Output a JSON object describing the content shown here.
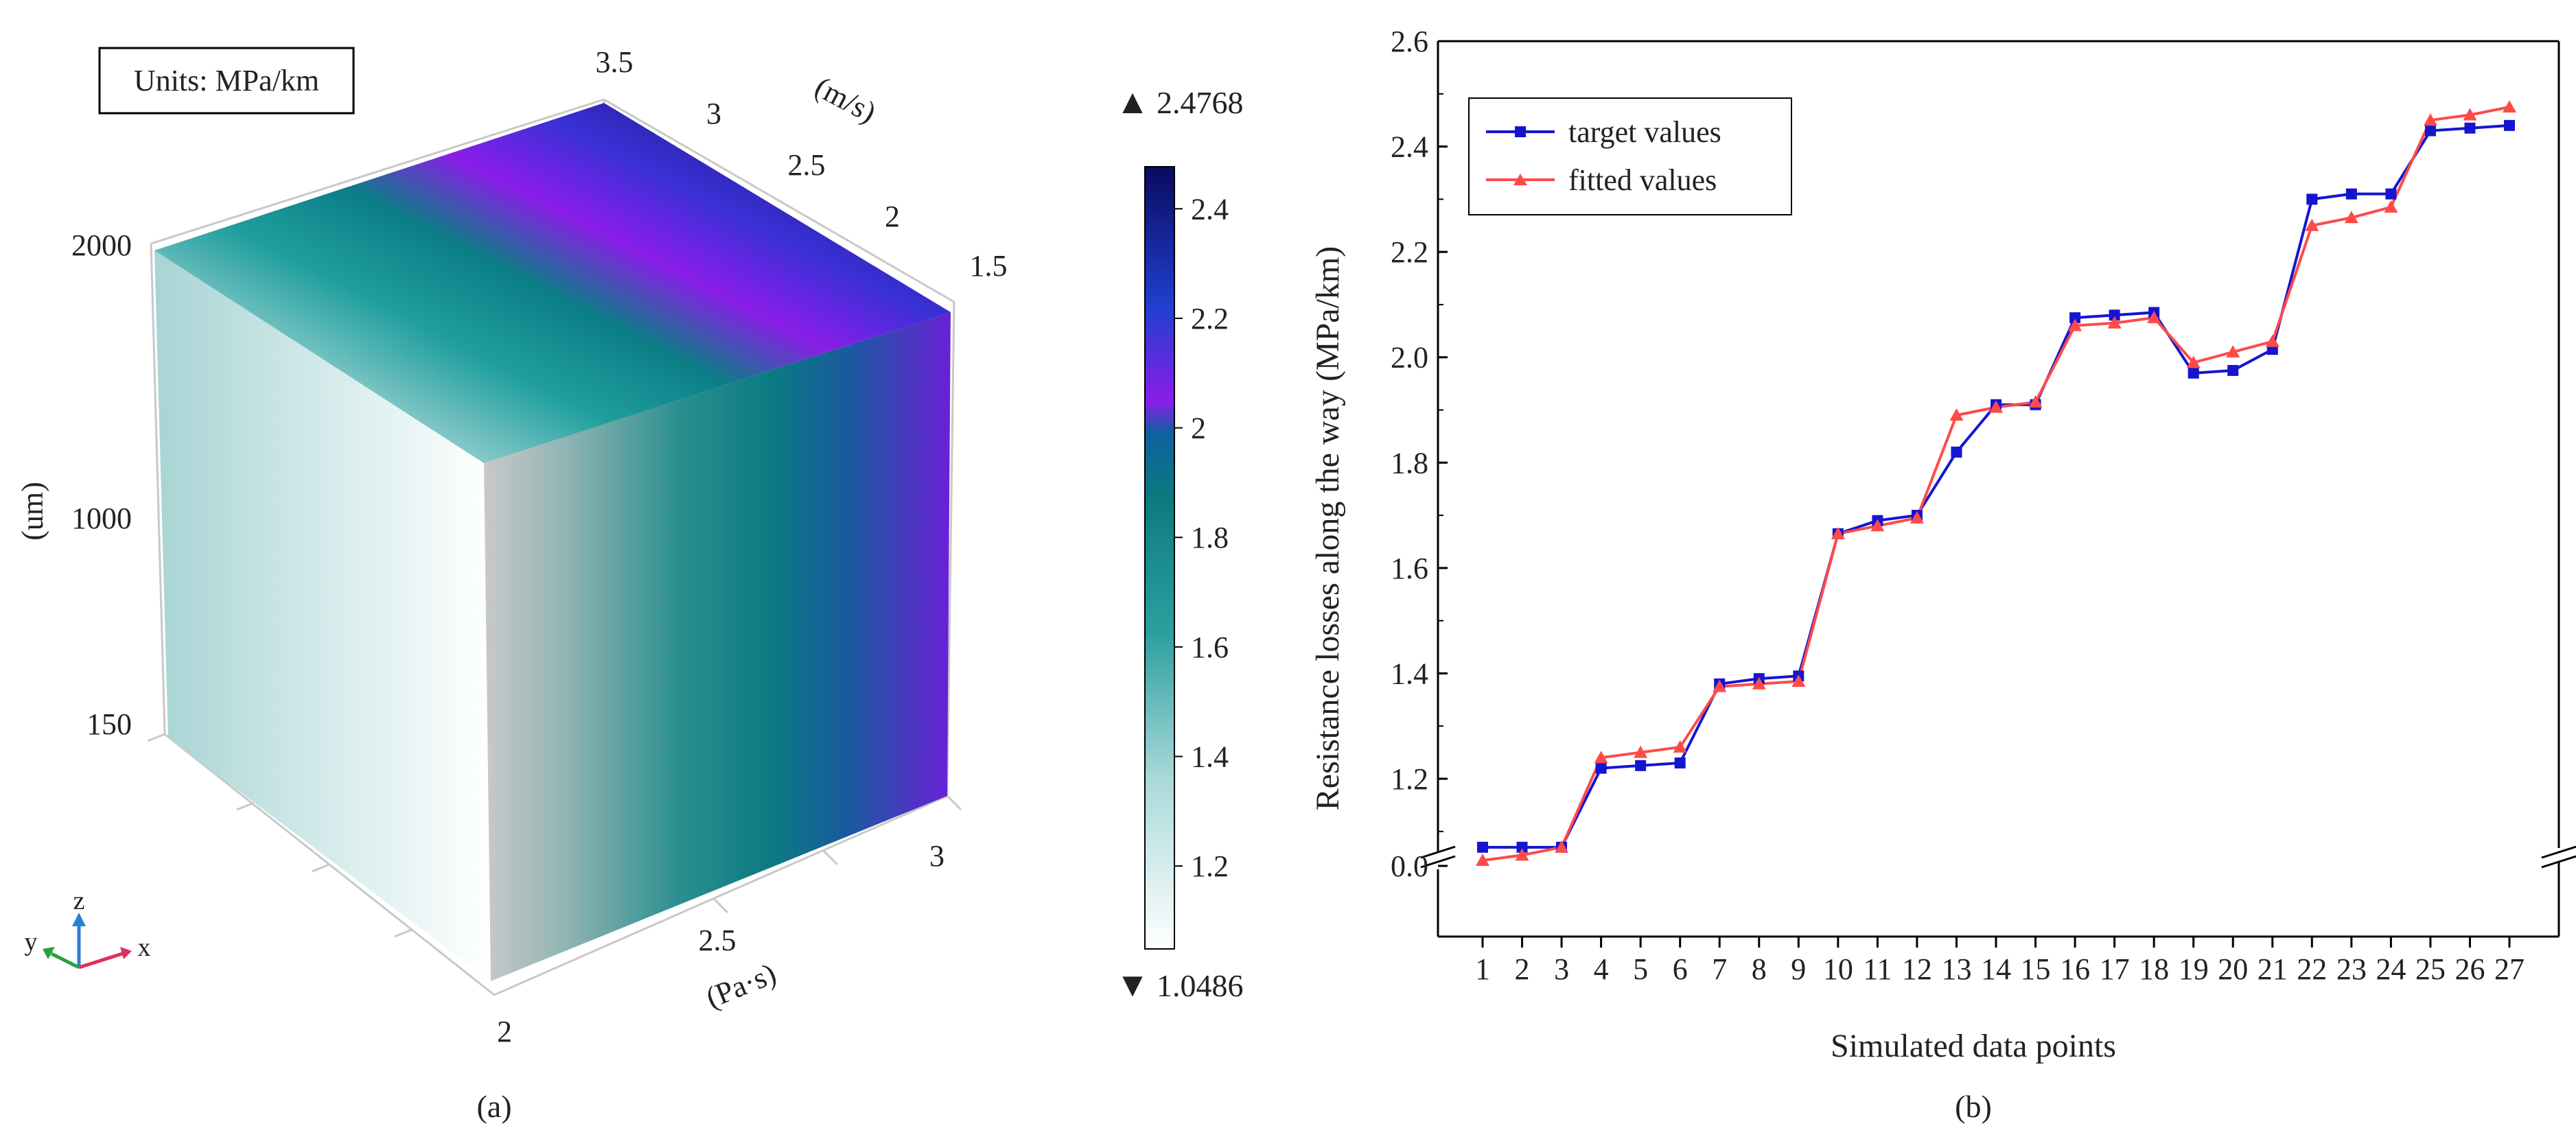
{
  "panel_a": {
    "units_label": "Units: MPa/km",
    "caption": "(a)",
    "z_axis": {
      "label": "(um)",
      "ticks": [
        "2000",
        "1000",
        "150"
      ]
    },
    "y_axis": {
      "label": "(m/s)",
      "ticks": [
        "3.5",
        "3",
        "2.5",
        "2",
        "1.5"
      ]
    },
    "x_axis": {
      "label": "(Pa·s)",
      "ticks": [
        "3",
        "2.5",
        "2"
      ]
    },
    "triad": {
      "z": "z",
      "y": "y",
      "x": "x"
    },
    "colorbar": {
      "max_label": "2.4768",
      "min_label": "1.0486",
      "max_marker": "▲",
      "min_marker": "▼",
      "ticks": [
        "2.4",
        "2.2",
        "2",
        "1.8",
        "1.6",
        "1.4",
        "1.2"
      ],
      "colors": [
        "#ffffff",
        "#a8d8d8",
        "#2fa0a0",
        "#0a7a80",
        "#1060a0",
        "#8a1de8",
        "#2040d0",
        "#0a0a60"
      ]
    }
  },
  "chart_data": {
    "type": "line",
    "title": "",
    "caption": "(b)",
    "xlabel": "Simulated data points",
    "ylabel": "Resistance losses along the way (MPa/km)",
    "x": [
      1,
      2,
      3,
      4,
      5,
      6,
      7,
      8,
      9,
      10,
      11,
      12,
      13,
      14,
      15,
      16,
      17,
      18,
      19,
      20,
      21,
      22,
      23,
      24,
      25,
      26,
      27
    ],
    "x_tick_labels": [
      "1",
      "2",
      "3",
      "4",
      "5",
      "6",
      "7",
      "8",
      "9",
      "10",
      "11",
      "12",
      "13",
      "14",
      "15",
      "16",
      "17",
      "18",
      "19",
      "20",
      "21",
      "22",
      "23",
      "24",
      "25",
      "26",
      "27"
    ],
    "y_tick_labels": [
      "2.6",
      "2.4",
      "2.2",
      "2.0",
      "1.8",
      "1.6",
      "1.4",
      "1.2",
      "0.0"
    ],
    "ylim": [
      1.0,
      2.6
    ],
    "axis_break": true,
    "legend_position": "top-left",
    "series": [
      {
        "name": "target values",
        "color": "#1515d0",
        "marker": "square",
        "values": [
          1.07,
          1.07,
          1.07,
          1.22,
          1.225,
          1.23,
          1.38,
          1.39,
          1.395,
          1.665,
          1.69,
          1.7,
          1.82,
          1.91,
          1.91,
          2.075,
          2.08,
          2.085,
          1.97,
          1.975,
          2.015,
          2.3,
          2.31,
          2.31,
          2.43,
          2.435,
          2.44
        ]
      },
      {
        "name": "fitted values",
        "color": "#ff4a4a",
        "marker": "triangle",
        "values": [
          1.045,
          1.055,
          1.07,
          1.24,
          1.25,
          1.26,
          1.375,
          1.38,
          1.385,
          1.665,
          1.68,
          1.695,
          1.89,
          1.905,
          1.915,
          2.06,
          2.065,
          2.075,
          1.99,
          2.01,
          2.03,
          2.25,
          2.265,
          2.285,
          2.45,
          2.46,
          2.475
        ]
      }
    ]
  }
}
